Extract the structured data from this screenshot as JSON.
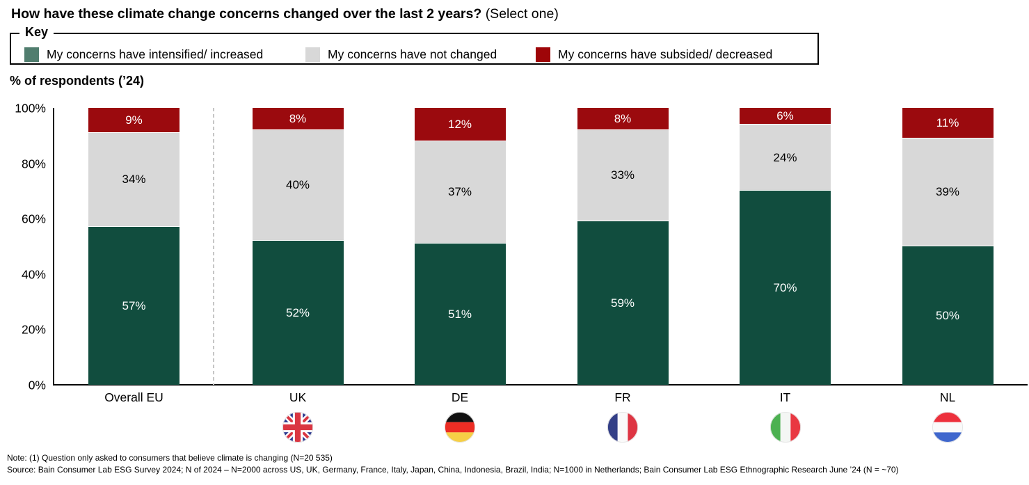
{
  "title": {
    "main": "How have these climate change concerns changed over the last 2 years?",
    "suffix": "(Select one)"
  },
  "key": {
    "label": "Key",
    "items": [
      {
        "label": "My concerns have intensified/ increased",
        "swatch_color": "#507D6E"
      },
      {
        "label": "My concerns have not changed",
        "swatch_color": "#D8D8D8"
      },
      {
        "label": "My concerns have subsided/ decreased",
        "swatch_color": "#9E0508"
      }
    ]
  },
  "axis_title": "% of respondents (’24)",
  "chart_data": {
    "type": "bar",
    "stacked": true,
    "title": "How have these climate change concerns changed over the last 2 years? (Select one)",
    "ylabel": "% of respondents (’24)",
    "ylim": [
      0,
      100
    ],
    "y_ticks": [
      "100%",
      "80%",
      "60%",
      "40%",
      "20%",
      "0%"
    ],
    "grid": false,
    "legend_position": "top",
    "categories": [
      "Overall EU",
      "UK",
      "DE",
      "FR",
      "IT",
      "NL"
    ],
    "flags": [
      "",
      "uk",
      "de",
      "fr",
      "it",
      "nl"
    ],
    "separator_after_index": 0,
    "series": [
      {
        "name": "My concerns have intensified/ increased",
        "slug": "intensified",
        "color": "#114D3E",
        "label_color": "#FFFFFF",
        "values": [
          57,
          52,
          51,
          59,
          70,
          50
        ]
      },
      {
        "name": "My concerns have not changed",
        "slug": "not-changed",
        "color": "#D8D8D8",
        "label_color": "#000000",
        "values": [
          34,
          40,
          37,
          33,
          24,
          39
        ]
      },
      {
        "name": "My concerns have subsided/ decreased",
        "slug": "subsided",
        "color": "#9B0A0E",
        "label_color": "#FFFFFF",
        "values": [
          9,
          8,
          12,
          8,
          6,
          11
        ]
      }
    ]
  },
  "notes": {
    "note": "Note: (1) Question only asked to consumers that believe climate is changing (N=20 535)",
    "source": "Source: Bain Consumer Lab ESG Survey 2024; N of 2024 – N=2000 across US, UK, Germany, France, Italy, Japan, China, Indonesia, Brazil, India; N=1000 in Netherlands; Bain Consumer Lab ESG Ethnographic Research June ’24 (N = ~70)"
  }
}
